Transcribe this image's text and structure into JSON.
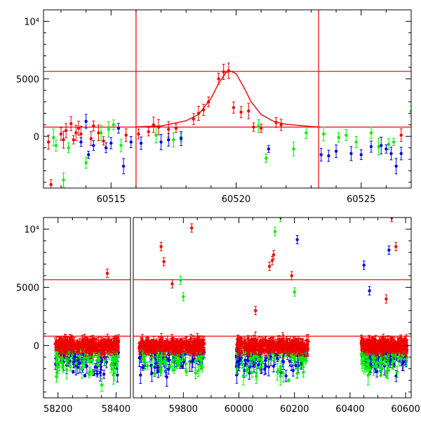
{
  "chart_data": [
    {
      "type": "scatter",
      "title": "",
      "xlabel": "",
      "ylabel": "",
      "xlim": [
        60512.3,
        60527.0
      ],
      "ylim": [
        -4500,
        11000
      ],
      "x_ticks": [
        60515,
        60520,
        60525
      ],
      "y_ticks": [
        {
          "value": 0,
          "label": "0"
        },
        {
          "value": 5000,
          "label": "5000"
        },
        {
          "value": 10000,
          "label": "10⁴"
        }
      ],
      "reference_lines": {
        "vertical_x": [
          60516.0,
          60523.3
        ],
        "horizontal_y": [
          5650,
          800
        ]
      },
      "fit_curve": {
        "color": "#ee0000",
        "x": [
          60516.0,
          60517.0,
          60518.0,
          60518.5,
          60519.0,
          60519.3,
          60519.6,
          60519.8,
          60520.0,
          60520.3,
          60520.6,
          60521.0,
          60521.5,
          60522.0,
          60523.0,
          60523.3
        ],
        "y": [
          820,
          900,
          1350,
          1900,
          3300,
          4600,
          5550,
          5650,
          5450,
          4300,
          3000,
          1900,
          1300,
          1050,
          850,
          820
        ]
      },
      "series": [
        {
          "color": "#ee0000",
          "x": [
            60512.5,
            60512.6,
            60513.0,
            60513.1,
            60513.2,
            60513.4,
            60513.5,
            60513.6,
            60513.7,
            60513.8,
            60514.2,
            60514.3,
            60514.5,
            60514.7,
            60515.6,
            60516.1,
            60516.5,
            60516.7,
            60516.9,
            60517.3,
            60517.6,
            60518.3,
            60518.5,
            60518.7,
            60518.9,
            60519.3,
            60519.5,
            60519.7,
            60519.9,
            60520.2,
            60520.5,
            60520.7,
            60521.0,
            60521.6,
            60521.8,
            60526.6
          ],
          "y": [
            -500,
            -4200,
            200,
            -300,
            500,
            1100,
            -300,
            300,
            700,
            200,
            -200,
            900,
            300,
            -400,
            100,
            200,
            400,
            1000,
            800,
            600,
            700,
            1500,
            2000,
            2300,
            3000,
            5000,
            5600,
            5700,
            2500,
            2100,
            2200,
            800,
            700,
            1200,
            1000,
            100
          ]
        },
        {
          "color": "#00ee00",
          "x": [
            60512.7,
            60512.8,
            60513.1,
            60513.3,
            60514.0,
            60514.6,
            60514.9,
            60515.1,
            60515.4,
            60516.8,
            60517.5,
            60517.8,
            60520.9,
            60521.2,
            60522.3,
            60522.8,
            60523.5,
            60524.1,
            60524.4,
            60524.8,
            60525.4,
            60525.7,
            60526.1,
            60526.3,
            60527.0
          ],
          "y": [
            -100,
            -800,
            -3800,
            -1000,
            -2300,
            300,
            600,
            1000,
            -800,
            100,
            -300,
            -100,
            900,
            -1900,
            -1100,
            300,
            200,
            -100,
            100,
            -500,
            300,
            -900,
            -700,
            -500,
            2200
          ]
        },
        {
          "color": "#0000dd",
          "x": [
            60513.8,
            60514.0,
            60514.1,
            60514.3,
            60514.8,
            60515.0,
            60515.3,
            60515.5,
            60515.8,
            60516.2,
            60517.0,
            60517.3,
            60517.8,
            60521.3,
            60523.4,
            60523.7,
            60524.0,
            60524.6,
            60525.0,
            60525.4,
            60525.8,
            60526.0,
            60526.2,
            60526.4,
            60526.6
          ],
          "y": [
            -500,
            1300,
            -1600,
            -800,
            -1000,
            -600,
            700,
            -2600,
            -500,
            -600,
            -500,
            -300,
            -200,
            -1100,
            -1600,
            -1700,
            -1300,
            -1500,
            -1600,
            -900,
            -800,
            -1100,
            -1500,
            -2600,
            -1500
          ]
        }
      ]
    },
    {
      "type": "scatter",
      "title": "",
      "xlabel": "",
      "ylabel": "",
      "ylim": [
        -4500,
        11000
      ],
      "x_ticks": [
        58200,
        58400,
        59800,
        60000,
        60200,
        60400,
        60600
      ],
      "y_ticks": [
        {
          "value": 0,
          "label": "0"
        },
        {
          "value": 5000,
          "label": "5000"
        },
        {
          "value": 10000,
          "label": "10⁴"
        }
      ],
      "x_segments": [
        {
          "xlim": [
            58150,
            58450
          ]
        },
        {
          "xlim": [
            59620,
            60620
          ]
        }
      ],
      "reference_lines": {
        "horizontal_y": [
          5650,
          800
        ]
      },
      "data_windows": [
        [
          58190,
          58410
        ],
        [
          59640,
          59875
        ],
        [
          59990,
          60250
        ],
        [
          60440,
          60605
        ]
      ],
      "outliers": [
        {
          "color": "#ee0000",
          "x": 58370,
          "y": 6200
        },
        {
          "color": "#ee0000",
          "x": 59720,
          "y": 8500
        },
        {
          "color": "#ee0000",
          "x": 59730,
          "y": 7200
        },
        {
          "color": "#ee0000",
          "x": 59760,
          "y": 5300
        },
        {
          "color": "#ee0000",
          "x": 59830,
          "y": 10100
        },
        {
          "color": "#00ee00",
          "x": 59790,
          "y": 5600
        },
        {
          "color": "#00ee00",
          "x": 59800,
          "y": 4200
        },
        {
          "color": "#ee0000",
          "x": 60060,
          "y": 3000
        },
        {
          "color": "#ee0000",
          "x": 60110,
          "y": 6800
        },
        {
          "color": "#ee0000",
          "x": 60120,
          "y": 7300
        },
        {
          "color": "#ee0000",
          "x": 60125,
          "y": 7800
        },
        {
          "color": "#00ee00",
          "x": 60130,
          "y": 9800
        },
        {
          "color": "#00ee00",
          "x": 60150,
          "y": 11000
        },
        {
          "color": "#ee0000",
          "x": 60190,
          "y": 6000
        },
        {
          "color": "#0000dd",
          "x": 60210,
          "y": 9100
        },
        {
          "color": "#00ee00",
          "x": 60200,
          "y": 4600
        },
        {
          "color": "#0000dd",
          "x": 60450,
          "y": 6900
        },
        {
          "color": "#0000dd",
          "x": 60470,
          "y": 4700
        },
        {
          "color": "#0000dd",
          "x": 60540,
          "y": 8200
        },
        {
          "color": "#ee0000",
          "x": 60550,
          "y": 11000
        },
        {
          "color": "#ee0000",
          "x": 60565,
          "y": 8500
        },
        {
          "color": "#ee0000",
          "x": 60530,
          "y": 4000
        }
      ]
    }
  ]
}
